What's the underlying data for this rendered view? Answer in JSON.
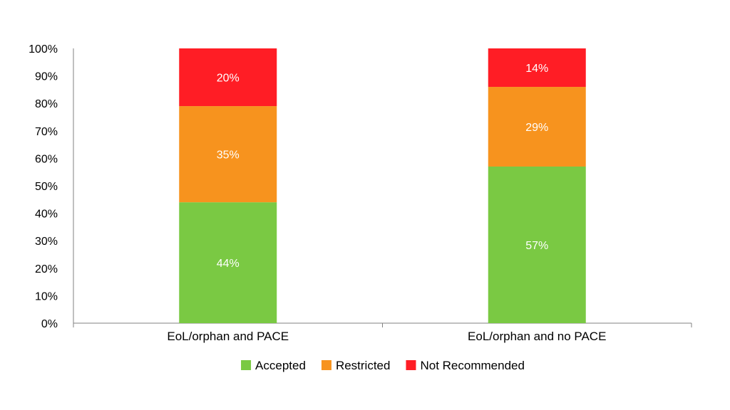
{
  "chart_data": {
    "type": "bar",
    "stacked": true,
    "categories": [
      "EoL/orphan and PACE",
      "EoL/orphan and no PACE"
    ],
    "series": [
      {
        "name": "Accepted",
        "values": [
          44,
          57
        ],
        "labels": [
          "44%",
          "57%"
        ],
        "color": "#7ac943"
      },
      {
        "name": "Restricted",
        "values": [
          35,
          29
        ],
        "labels": [
          "35%",
          "29%"
        ],
        "color": "#f7931e"
      },
      {
        "name": "Not Recommended",
        "values": [
          20,
          14
        ],
        "labels": [
          "20%",
          "14%"
        ],
        "color": "#ff1d25"
      }
    ],
    "yticks": [
      "0%",
      "10%",
      "20%",
      "30%",
      "40%",
      "50%",
      "60%",
      "70%",
      "80%",
      "90%",
      "100%"
    ],
    "ylim": [
      0,
      100
    ],
    "grid": false,
    "legend_position": "bottom"
  }
}
